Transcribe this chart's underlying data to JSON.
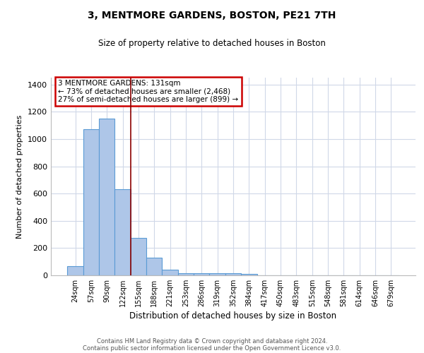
{
  "title": "3, MENTMORE GARDENS, BOSTON, PE21 7TH",
  "subtitle": "Size of property relative to detached houses in Boston",
  "xlabel": "Distribution of detached houses by size in Boston",
  "ylabel": "Number of detached properties",
  "annotation_line1": "3 MENTMORE GARDENS: 131sqm",
  "annotation_line2": "← 73% of detached houses are smaller (2,468)",
  "annotation_line3": "27% of semi-detached houses are larger (899) →",
  "footer_line1": "Contains HM Land Registry data © Crown copyright and database right 2024.",
  "footer_line2": "Contains public sector information licensed under the Open Government Licence v3.0.",
  "categories": [
    "24sqm",
    "57sqm",
    "90sqm",
    "122sqm",
    "155sqm",
    "188sqm",
    "221sqm",
    "253sqm",
    "286sqm",
    "319sqm",
    "352sqm",
    "384sqm",
    "417sqm",
    "450sqm",
    "483sqm",
    "515sqm",
    "548sqm",
    "581sqm",
    "614sqm",
    "646sqm",
    "679sqm"
  ],
  "values": [
    65,
    1070,
    1150,
    630,
    275,
    130,
    43,
    18,
    17,
    18,
    16,
    12,
    0,
    0,
    0,
    0,
    0,
    0,
    0,
    0,
    0
  ],
  "bar_color": "#aec6e8",
  "bar_edge_color": "#5b9bd5",
  "red_line_x": 3.5,
  "red_line_color": "#8b0000",
  "annotation_box_edge_color": "#cc0000",
  "background_color": "#ffffff",
  "grid_color": "#d0d8e8",
  "ylim": [
    0,
    1450
  ],
  "yticks": [
    0,
    200,
    400,
    600,
    800,
    1000,
    1200,
    1400
  ]
}
